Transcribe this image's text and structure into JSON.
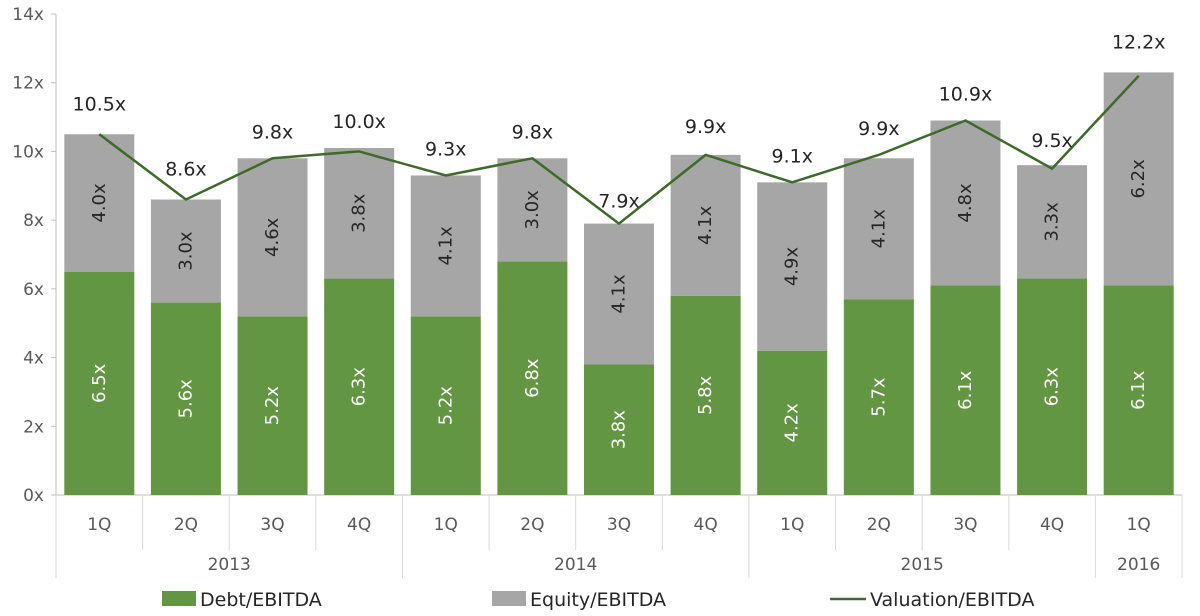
{
  "chart_data": {
    "type": "bar",
    "stacked": true,
    "title": "",
    "xlabel": "",
    "ylabel": "",
    "ylim": [
      0,
      14
    ],
    "y_ticks": [
      "0x",
      "2x",
      "4x",
      "6x",
      "8x",
      "10x",
      "12x",
      "14x"
    ],
    "y_tick_values": [
      0,
      2,
      4,
      6,
      8,
      10,
      12,
      14
    ],
    "grid": false,
    "legend_position": "bottom",
    "categories": [
      "1Q",
      "2Q",
      "3Q",
      "4Q",
      "1Q",
      "2Q",
      "3Q",
      "4Q",
      "1Q",
      "2Q",
      "3Q",
      "4Q",
      "1Q"
    ],
    "groups": [
      {
        "label": "2013",
        "span": 4
      },
      {
        "label": "2014",
        "span": 4
      },
      {
        "label": "2015",
        "span": 4
      },
      {
        "label": "2016",
        "span": 1
      }
    ],
    "series": [
      {
        "name": "Debt/EBITDA",
        "kind": "bar",
        "color": "#629642",
        "values": [
          6.5,
          5.6,
          5.2,
          6.3,
          5.2,
          6.8,
          3.8,
          5.8,
          4.2,
          5.7,
          6.1,
          6.3,
          6.1
        ],
        "labels": [
          "6.5x",
          "5.6x",
          "5.2x",
          "6.3x",
          "5.2x",
          "6.8x",
          "3.8x",
          "5.8x",
          "4.2x",
          "5.7x",
          "6.1x",
          "6.3x",
          "6.1x"
        ]
      },
      {
        "name": "Equity/EBITDA",
        "kind": "bar",
        "color": "#a6a6a6",
        "values": [
          4.0,
          3.0,
          4.6,
          3.8,
          4.1,
          3.0,
          4.1,
          4.1,
          4.9,
          4.1,
          4.8,
          3.3,
          6.2
        ],
        "labels": [
          "4.0x",
          "3.0x",
          "4.6x",
          "3.8x",
          "4.1x",
          "3.0x",
          "4.1x",
          "4.1x",
          "4.9x",
          "4.1x",
          "4.8x",
          "3.3x",
          "6.2x"
        ]
      },
      {
        "name": "Valuation/EBITDA",
        "kind": "line",
        "color": "#3d6b2a",
        "values": [
          10.5,
          8.6,
          9.8,
          10.0,
          9.3,
          9.8,
          7.9,
          9.9,
          9.1,
          9.9,
          10.9,
          9.5,
          12.2
        ],
        "labels": [
          "10.5x",
          "8.6x",
          "9.8x",
          "10.0x",
          "9.3x",
          "9.8x",
          "7.9x",
          "9.9x",
          "9.1x",
          "9.9x",
          "10.9x",
          "9.5x",
          "12.2x"
        ]
      }
    ]
  }
}
